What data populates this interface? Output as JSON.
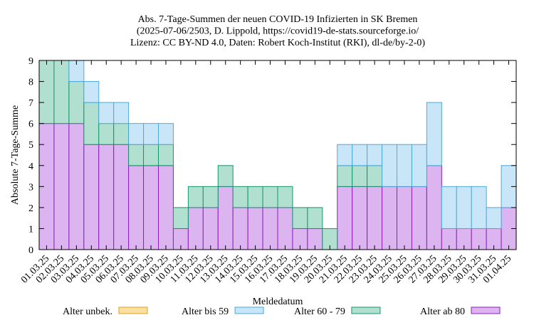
{
  "chart_data": {
    "type": "bar",
    "title_lines": [
      "Abs. 7-Tage-Summen der neuen COVID-19 Infizierten in SK Bremen",
      "(2025-07-06/2503, D. Lippold, https://covid19-de-stats.sourceforge.io/",
      "Lizenz: CC BY-ND 4.0, Daten: Robert Koch-Institut (RKI), dl-de/by-2-0)"
    ],
    "xlabel": "Meldedatum",
    "ylabel": "Absolute 7-Tage-Summe",
    "ylim": [
      0,
      9
    ],
    "yticks": [
      0,
      1,
      2,
      3,
      4,
      5,
      6,
      7,
      8,
      9
    ],
    "stacked": true,
    "categories": [
      "01.03.25",
      "02.03.25",
      "03.03.25",
      "04.03.25",
      "05.03.25",
      "06.03.25",
      "07.03.25",
      "08.03.25",
      "09.03.25",
      "10.03.25",
      "11.03.25",
      "12.03.25",
      "13.03.25",
      "14.03.25",
      "15.03.25",
      "16.03.25",
      "17.03.25",
      "18.03.25",
      "19.03.25",
      "20.03.25",
      "21.03.25",
      "22.03.25",
      "23.03.25",
      "24.03.25",
      "25.03.25",
      "26.03.25",
      "27.03.25",
      "28.03.25",
      "29.03.25",
      "30.03.25",
      "31.03.25",
      "01.04.25"
    ],
    "series": [
      {
        "name": "Alter ab 80",
        "fill": "#dcb4f0",
        "stroke": "#8a1fbf",
        "values": [
          6,
          6,
          6,
          5,
          5,
          5,
          4,
          4,
          4,
          1,
          2,
          2,
          3,
          2,
          2,
          2,
          2,
          1,
          1,
          0,
          3,
          3,
          3,
          3,
          3,
          3,
          4,
          1,
          1,
          1,
          1,
          2
        ]
      },
      {
        "name": "Alter 60 - 79",
        "fill": "#b2e0d0",
        "stroke": "#17936a",
        "values": [
          3,
          3,
          2,
          2,
          1,
          1,
          1,
          1,
          1,
          1,
          1,
          1,
          1,
          1,
          1,
          1,
          1,
          1,
          1,
          1,
          1,
          1,
          1,
          0,
          0,
          0,
          0,
          0,
          0,
          0,
          0,
          0
        ]
      },
      {
        "name": "Alter bis 59",
        "fill": "#c8e6f8",
        "stroke": "#4ea8d8",
        "values": [
          0,
          0,
          1,
          1,
          1,
          1,
          1,
          1,
          1,
          0,
          0,
          0,
          0,
          0,
          0,
          0,
          0,
          0,
          0,
          0,
          1,
          1,
          1,
          2,
          2,
          2,
          3,
          2,
          2,
          2,
          1,
          2
        ]
      },
      {
        "name": "Alter unbek.",
        "fill": "#fbe0a4",
        "stroke": "#e0a020",
        "values": [
          0,
          0,
          0,
          0,
          0,
          0,
          0,
          0,
          0,
          0,
          0,
          0,
          0,
          0,
          0,
          0,
          0,
          0,
          0,
          0,
          0,
          0,
          0,
          0,
          0,
          0,
          0,
          0,
          0,
          0,
          0,
          0
        ]
      }
    ],
    "legend_order": [
      "Alter unbek.",
      "Alter bis 59",
      "Alter 60 - 79",
      "Alter ab 80"
    ],
    "legend_position": "bottom",
    "grid": false
  }
}
